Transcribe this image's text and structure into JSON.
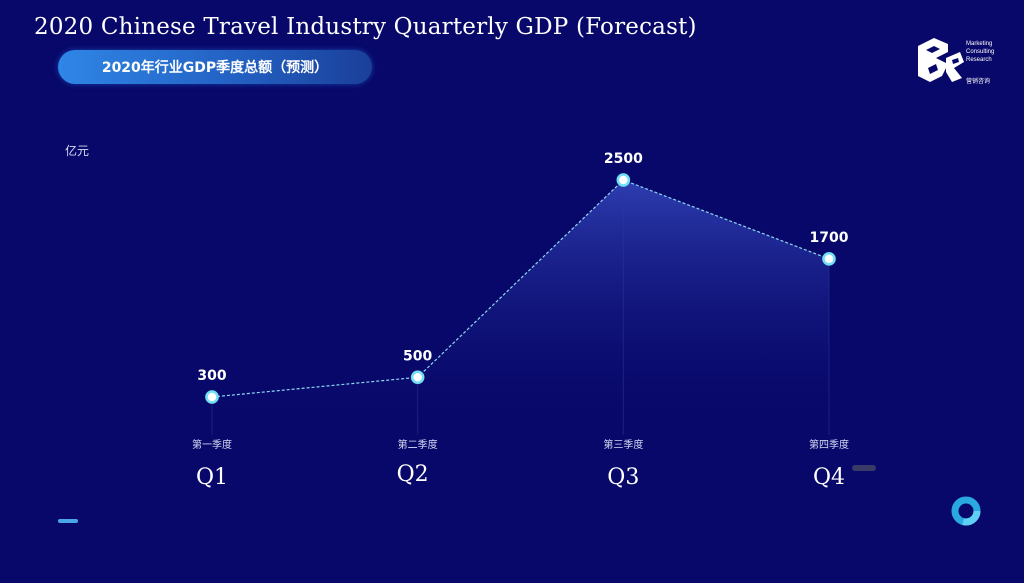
{
  "title": "2020 Chinese Travel Industry Quarterly GDP (Forecast)",
  "subtitle": "2020年行业GDP季度总额（预测）",
  "logo": {
    "icon": "mcr-logo-icon",
    "line1": "Marketing",
    "line2": "Consulting",
    "line3": "Research",
    "tag": "营销咨询"
  },
  "colors": {
    "background": "#08086a",
    "line": "#8fd6f2",
    "marker": "#6fe0f5",
    "area_top": "#3a4fc8",
    "label": "#ffffff"
  },
  "chart_data": {
    "type": "area",
    "ylabel": "亿元",
    "categories": [
      "第一季度",
      "第二季度",
      "第三季度",
      "第四季度"
    ],
    "category_en": [
      "Q1",
      "Q2",
      "Q3",
      "Q4"
    ],
    "values": [
      300,
      500,
      2500,
      1700
    ],
    "data_labels": [
      "300",
      "500",
      "2500",
      "1700"
    ],
    "ylim": [
      0,
      2500
    ],
    "grid": false,
    "legend": "none"
  }
}
